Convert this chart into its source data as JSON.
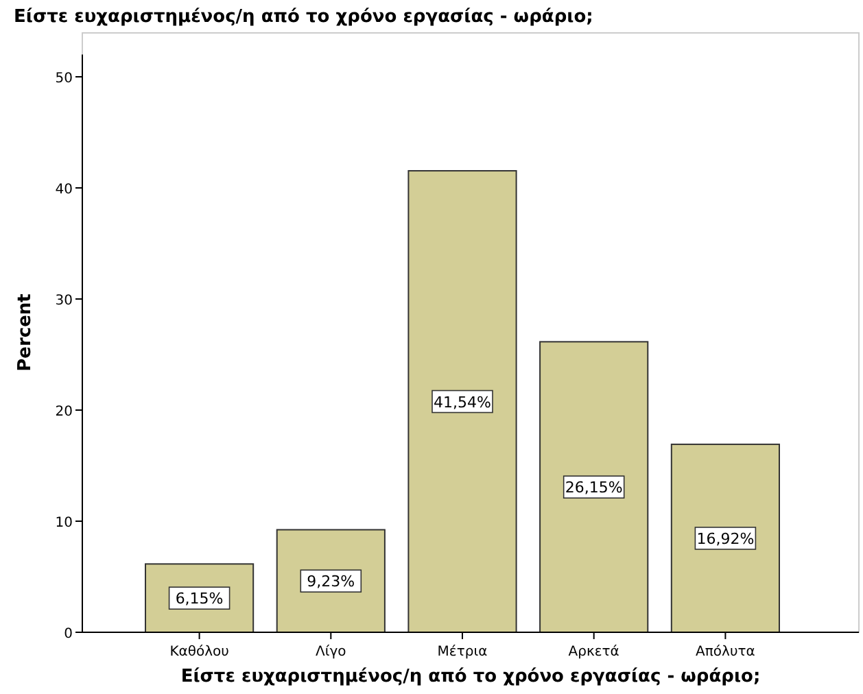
{
  "chart_data": {
    "type": "bar",
    "title": "Είστε ευχαριστημένος/η από το χρόνο εργασίας - ωράριο;",
    "xlabel": "Είστε ευχαριστημένος/η από το χρόνο εργασίας - ωράριο;",
    "ylabel": "Percent",
    "categories": [
      "Καθόλου",
      "Λίγο",
      "Μέτρια",
      "Αρκετά",
      "Απόλυτα"
    ],
    "values": [
      6.15,
      9.23,
      41.54,
      26.15,
      16.92
    ],
    "value_labels": [
      "6,15%",
      "9,23%",
      "41,54%",
      "26,15%",
      "16,92%"
    ],
    "color": "#d3ce96",
    "ylim": [
      0,
      52
    ],
    "yticks": [
      0,
      10,
      20,
      30,
      40,
      50
    ],
    "grid": false
  }
}
